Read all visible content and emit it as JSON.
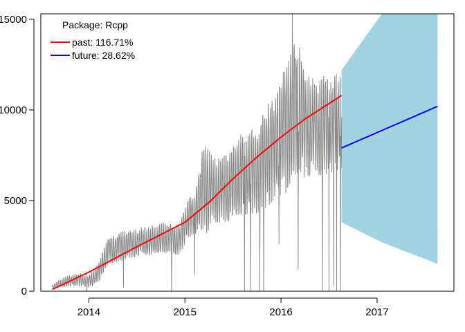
{
  "chart_data": {
    "type": "line",
    "title": "",
    "xlabel": "",
    "ylabel": "",
    "xlim": [
      2013.5,
      2017.8
    ],
    "ylim": [
      0,
      15300
    ],
    "x_ticks": [
      2014,
      2015,
      2016,
      2017
    ],
    "x_tick_labels": [
      "2014",
      "2015",
      "2016",
      "2017"
    ],
    "y_ticks": [
      0,
      5000,
      10000,
      15000
    ],
    "y_tick_labels": [
      "0",
      "5000",
      "10000",
      "15000"
    ],
    "grid": false,
    "legend": {
      "position": "top-left",
      "title": "Package: Rcpp",
      "entries": [
        {
          "label": "past: 116.71%",
          "color": "#ff0000"
        },
        {
          "label": "future: 28.62%",
          "color": "#0000ff"
        }
      ]
    },
    "series": [
      {
        "name": "Package: Rcpp",
        "style": "daily-noisy",
        "color": "#888888",
        "x": [
          2013.62,
          2013.75,
          2013.9,
          2014.0,
          2014.1,
          2014.2,
          2014.35,
          2014.5,
          2014.65,
          2014.8,
          2014.95,
          2015.0,
          2015.1,
          2015.2,
          2015.3,
          2015.45,
          2015.6,
          2015.75,
          2015.85,
          2015.95,
          2016.05,
          2016.15,
          2016.25,
          2016.35,
          2016.45,
          2016.55,
          2016.63
        ],
        "y_low": [
          100,
          250,
          300,
          200,
          400,
          1500,
          1700,
          1900,
          2000,
          2100,
          2000,
          2600,
          3200,
          3000,
          3800,
          3800,
          4200,
          4300,
          4600,
          5200,
          5400,
          6000,
          6300,
          6400,
          6400,
          6600,
          6800
        ],
        "y_high": [
          350,
          800,
          1000,
          900,
          1500,
          3000,
          3300,
          3500,
          3600,
          3800,
          3700,
          4800,
          5500,
          8300,
          7300,
          7600,
          8800,
          9000,
          10200,
          11000,
          12500,
          14200,
          12600,
          11500,
          11900,
          12100,
          12200
        ],
        "outliers": [
          {
            "x": 2015.62,
            "y": 0
          },
          {
            "x": 2015.68,
            "y": 0
          },
          {
            "x": 2015.78,
            "y": 0
          },
          {
            "x": 2015.82,
            "y": 0
          },
          {
            "x": 2015.98,
            "y": 2600
          },
          {
            "x": 2016.12,
            "y": 15300
          },
          {
            "x": 2016.18,
            "y": 1200
          },
          {
            "x": 2016.43,
            "y": 0
          },
          {
            "x": 2016.5,
            "y": 0
          },
          {
            "x": 2016.55,
            "y": 300
          },
          {
            "x": 2016.58,
            "y": 0
          },
          {
            "x": 2016.62,
            "y": 0
          },
          {
            "x": 2014.36,
            "y": 200
          },
          {
            "x": 2014.86,
            "y": 0
          },
          {
            "x": 2015.1,
            "y": 900
          },
          {
            "x": 2013.98,
            "y": 0
          }
        ]
      },
      {
        "name": "past: 116.71%",
        "color": "#ff0000",
        "x": [
          2013.62,
          2014.0,
          2014.5,
          2015.0,
          2015.25,
          2015.5,
          2015.75,
          2016.0,
          2016.25,
          2016.5,
          2016.63
        ],
        "y": [
          100,
          1050,
          2450,
          3800,
          4900,
          6200,
          7400,
          8500,
          9500,
          10350,
          10800
        ]
      },
      {
        "name": "future: 28.62%",
        "color": "#0000ff",
        "x": [
          2016.63,
          2017.63
        ],
        "y": [
          7900,
          10200
        ]
      }
    ],
    "forecast_band": {
      "color": "#a3d2e2",
      "x": [
        2016.63,
        2017.05,
        2017.63
      ],
      "upper": [
        12200,
        15300,
        15300
      ],
      "lower": [
        3800,
        2700,
        1500
      ]
    }
  }
}
